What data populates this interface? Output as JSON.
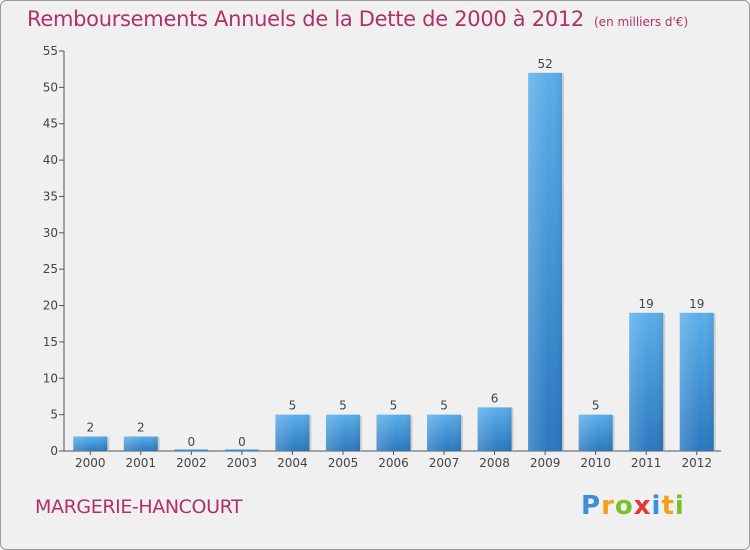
{
  "chart_data": {
    "type": "bar",
    "title": "Remboursements Annuels de la Dette de 2000 à 2012",
    "subtitle": "(en milliers d'€)",
    "categories": [
      "2000",
      "2001",
      "2002",
      "2003",
      "2004",
      "2005",
      "2006",
      "2007",
      "2008",
      "2009",
      "2010",
      "2011",
      "2012"
    ],
    "values": [
      2,
      2,
      0,
      0,
      5,
      5,
      5,
      5,
      6,
      52,
      5,
      19,
      19
    ],
    "ylim": [
      0,
      55
    ],
    "yticks": [
      0,
      5,
      10,
      15,
      20,
      25,
      30,
      35,
      40,
      45,
      50,
      55
    ],
    "grid": false,
    "legend": "none",
    "bar_color": "#3d8fd6"
  },
  "footer": {
    "commune": "MARGERIE-HANCOURT",
    "logo": "Proxiti"
  }
}
